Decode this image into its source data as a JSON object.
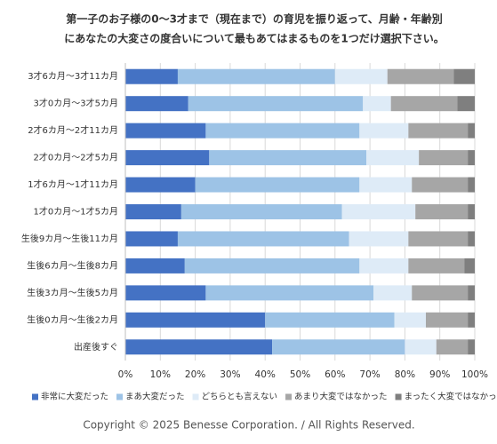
{
  "chart_data": {
    "type": "stacked-barh",
    "title": [
      "第一子のお子様の0〜3才まで（現在まで）の育児を振り返って、月齢・年齢別",
      "にあなたの大変さの度合いについて最もあてはまるものを1つだけ選択下さい。"
    ],
    "categories": [
      "3才6カ月〜3才11カ月",
      "3才0カ月〜3才5カ月",
      "2才6カ月〜2才11カ月",
      "2才0カ月〜2才5カ月",
      "1才6カ月〜1才11カ月",
      "1才0カ月〜1才5カ月",
      "生後9カ月〜生後11カ月",
      "生後6カ月〜生後8カ月",
      "生後3カ月〜生後5カ月",
      "生後0カ月〜生後2カ月",
      "出産後すぐ"
    ],
    "series": [
      {
        "name": "非常に大変だった",
        "color": "#4472c4",
        "values": [
          15,
          18,
          23,
          24,
          20,
          16,
          15,
          17,
          23,
          40,
          42
        ]
      },
      {
        "name": "まあ大変だった",
        "color": "#9dc3e6",
        "values": [
          45,
          50,
          44,
          45,
          47,
          46,
          49,
          50,
          48,
          37,
          38
        ]
      },
      {
        "name": "どちらとも言えない",
        "color": "#deebf7",
        "values": [
          15,
          8,
          14,
          15,
          15,
          21,
          17,
          14,
          11,
          9,
          9
        ]
      },
      {
        "name": "あまり大変ではなかった",
        "color": "#a6a6a6",
        "values": [
          19,
          19,
          17,
          14,
          16,
          15,
          17,
          16,
          16,
          12,
          9
        ]
      },
      {
        "name": "まったく大変ではなかった",
        "color": "#7f7f7f",
        "values": [
          6,
          5,
          2,
          2,
          2,
          2,
          2,
          3,
          2,
          2,
          2
        ]
      }
    ],
    "xlim": [
      0,
      100
    ],
    "xticks": [
      {
        "value": 0,
        "label": "0%"
      },
      {
        "value": 10,
        "label": "10%"
      },
      {
        "value": 20,
        "label": "20%"
      },
      {
        "value": 30,
        "label": "30%"
      },
      {
        "value": 40,
        "label": "40%"
      },
      {
        "value": 50,
        "label": "50%"
      },
      {
        "value": 60,
        "label": "60%"
      },
      {
        "value": 70,
        "label": "70%"
      },
      {
        "value": 80,
        "label": "80%"
      },
      {
        "value": 90,
        "label": "90%"
      },
      {
        "value": 100,
        "label": "100%"
      }
    ],
    "grid": true,
    "legend": "bottom"
  },
  "copyright": "Copyright © 2025 Benesse Corporation. / All Rights Reserved."
}
